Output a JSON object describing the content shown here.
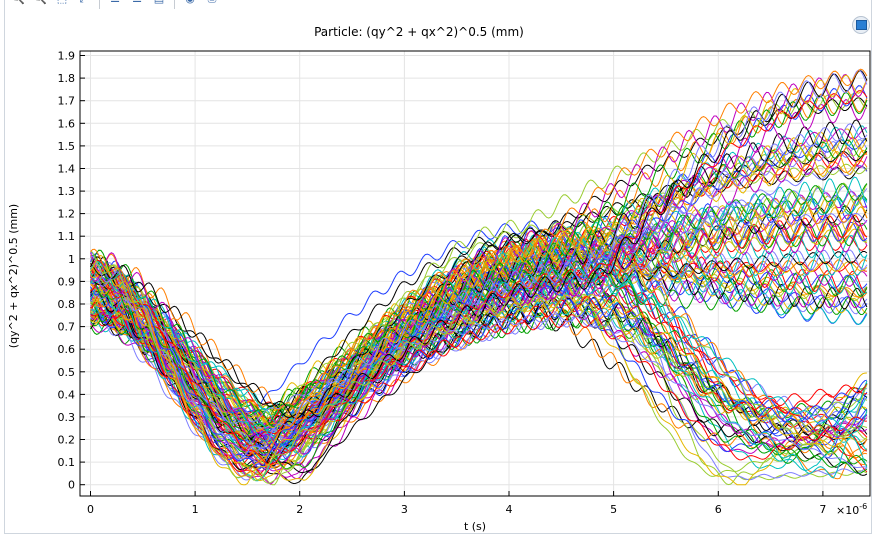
{
  "toolbar": {
    "buttons": [
      {
        "icon": "zoom-in-icon",
        "glyph": "🔍"
      },
      {
        "icon": "zoom-out-icon",
        "glyph": "🔍"
      },
      {
        "icon": "zoom-box-icon",
        "glyph": "⬚"
      },
      {
        "icon": "zoom-extents-icon",
        "glyph": "⤢"
      },
      {
        "icon": "x-axis-log-icon",
        "glyph": "☰"
      },
      {
        "icon": "y-axis-log-icon",
        "glyph": "☰"
      },
      {
        "icon": "legend-icon",
        "glyph": "▤"
      },
      {
        "icon": "camera-icon",
        "glyph": "◉"
      },
      {
        "icon": "export-icon",
        "glyph": "⎙"
      }
    ]
  },
  "corner_button": {
    "icon": "graph-window-icon"
  },
  "chart_data": {
    "type": "line",
    "title": "Particle: (qy^2 + qx^2)^0.5 (mm)",
    "xlabel": "t (s)",
    "ylabel": "(qy^2 + qx^2)^0.5 (mm)",
    "x_exponent_label": "×10",
    "x_exponent_power": "-6",
    "xlim": [
      -0.1,
      7.45
    ],
    "ylim": [
      -0.05,
      1.92
    ],
    "xticks": [
      0,
      1,
      2,
      3,
      4,
      5,
      6,
      7
    ],
    "yticks": [
      0,
      0.1,
      0.2,
      0.3,
      0.4,
      0.5,
      0.6,
      0.7,
      0.8,
      0.9,
      1,
      1.1,
      1.2,
      1.3,
      1.4,
      1.5,
      1.6,
      1.7,
      1.8,
      1.9
    ],
    "xtick_labels": [
      "0",
      "1",
      "2",
      "3",
      "4",
      "5",
      "6",
      "7"
    ],
    "ytick_labels": [
      "0",
      "0.1",
      "0.2",
      "0.3",
      "0.4",
      "0.5",
      "0.6",
      "0.7",
      "0.8",
      "0.9",
      "1",
      "1.1",
      "1.2",
      "1.3",
      "1.4",
      "1.5",
      "1.6",
      "1.7",
      "1.8",
      "1.9"
    ],
    "grid": true,
    "legend": "none",
    "series_count": 120,
    "series_colors": [
      "#1f3fff",
      "#00a000",
      "#ff0000",
      "#00bfbf",
      "#bf00bf",
      "#e6b800",
      "#000000",
      "#7f7fff",
      "#9acd32",
      "#ff7f00"
    ],
    "series": [
      {
        "x": [
          0,
          0.5,
          1.0,
          1.5,
          2.0,
          2.5,
          3.0,
          3.5,
          4.0,
          4.5,
          5.0,
          5.5,
          6.0,
          6.5,
          7.0,
          7.4
        ],
        "y": [
          1.0,
          1.05,
          0.85,
          0.55,
          0.32,
          0.75,
          1.05,
          1.18,
          1.22,
          1.35,
          1.5,
          1.62,
          1.7,
          1.72,
          1.78,
          1.8
        ]
      },
      {
        "x": [
          0,
          0.5,
          1.0,
          1.5,
          2.0,
          2.5,
          3.0,
          3.5,
          4.0,
          4.5,
          5.0,
          5.5,
          6.0,
          6.5,
          7.0,
          7.4
        ],
        "y": [
          0.96,
          1.0,
          0.8,
          0.48,
          0.28,
          0.7,
          1.02,
          1.12,
          1.18,
          1.3,
          1.42,
          1.52,
          1.6,
          1.65,
          1.68,
          1.7
        ]
      },
      {
        "x": [
          0,
          0.5,
          1.0,
          1.5,
          2.0,
          2.5,
          3.0,
          3.5,
          4.0,
          4.5,
          5.0,
          5.5,
          6.0,
          6.5,
          7.0,
          7.4
        ],
        "y": [
          0.72,
          0.62,
          0.45,
          0.2,
          0.3,
          0.2,
          0.55,
          0.75,
          0.88,
          0.98,
          0.95,
          0.75,
          0.45,
          0.15,
          0.1,
          0.3
        ]
      },
      {
        "x": [
          0,
          0.5,
          1.0,
          1.5,
          2.0,
          2.5,
          3.0,
          3.5,
          4.0,
          4.5,
          5.0,
          5.5,
          6.0,
          6.5,
          7.0,
          7.4
        ],
        "y": [
          0.8,
          0.7,
          0.5,
          0.15,
          0.28,
          0.1,
          0.45,
          0.7,
          0.86,
          0.92,
          0.85,
          0.65,
          0.35,
          0.1,
          0.02,
          0.35
        ]
      },
      {
        "x": [
          0,
          0.5,
          1.0,
          1.5,
          2.0,
          2.5,
          3.0,
          3.5,
          4.0,
          4.5,
          5.0,
          5.5,
          6.0,
          6.5,
          7.0,
          7.4
        ],
        "y": [
          0.86,
          0.8,
          0.6,
          0.3,
          0.3,
          0.3,
          0.65,
          0.85,
          0.98,
          1.05,
          1.0,
          0.9,
          0.75,
          0.6,
          0.55,
          0.6
        ]
      }
    ]
  }
}
